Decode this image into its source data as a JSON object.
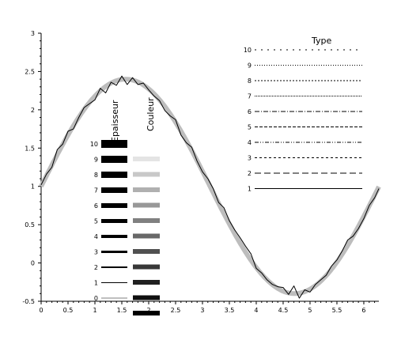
{
  "chart_data": {
    "type": "line",
    "xlim": [
      0,
      6.28
    ],
    "ylim": [
      -0.5,
      3
    ],
    "x_ticks": [
      "0",
      "0.5",
      "1",
      "1.5",
      "2",
      "2.5",
      "3",
      "3.5",
      "4",
      "4.5",
      "5",
      "5.5",
      "6"
    ],
    "y_ticks": [
      "-0.5",
      "0",
      "0.5",
      "1",
      "1.5",
      "2",
      "2.5",
      "3"
    ],
    "grid": false,
    "series": [
      {
        "kind": "smooth",
        "function": "1 + 1.4*sin(x)",
        "color": "#bdbdbd",
        "x": [
          0,
          0.5,
          1,
          1.5,
          2,
          2.5,
          3,
          3.5,
          4,
          4.5,
          5,
          5.5,
          6,
          6.28
        ],
        "y": [
          1.0,
          1.67,
          2.18,
          2.4,
          2.27,
          1.84,
          1.2,
          0.51,
          -0.06,
          -0.37,
          -0.34,
          0.02,
          0.61,
          1.0
        ]
      },
      {
        "kind": "noisy",
        "color": "#000000",
        "x": [
          0,
          0.1,
          0.2,
          0.3,
          0.4,
          0.5,
          0.6,
          0.7,
          0.8,
          0.9,
          1.0,
          1.1,
          1.2,
          1.3,
          1.4,
          1.5,
          1.6,
          1.7,
          1.8,
          1.9,
          2.0,
          2.1,
          2.2,
          2.3,
          2.4,
          2.5,
          2.6,
          2.7,
          2.8,
          2.9,
          3.0,
          3.1,
          3.2,
          3.3,
          3.4,
          3.5,
          3.6,
          3.7,
          3.8,
          3.9,
          4.0,
          4.1,
          4.2,
          4.3,
          4.4,
          4.5,
          4.6,
          4.7,
          4.8,
          4.9,
          5.0,
          5.1,
          5.2,
          5.3,
          5.4,
          5.5,
          5.6,
          5.7,
          5.8,
          5.9,
          6.0,
          6.1,
          6.2,
          6.28
        ],
        "y": [
          1.02,
          1.16,
          1.25,
          1.48,
          1.55,
          1.72,
          1.75,
          1.9,
          2.03,
          2.08,
          2.13,
          2.28,
          2.22,
          2.36,
          2.32,
          2.44,
          2.33,
          2.42,
          2.33,
          2.35,
          2.26,
          2.18,
          2.12,
          1.99,
          1.92,
          1.87,
          1.67,
          1.57,
          1.51,
          1.33,
          1.19,
          1.1,
          0.97,
          0.79,
          0.72,
          0.55,
          0.43,
          0.33,
          0.22,
          0.12,
          -0.07,
          -0.13,
          -0.22,
          -0.28,
          -0.31,
          -0.32,
          -0.41,
          -0.3,
          -0.46,
          -0.35,
          -0.38,
          -0.28,
          -0.22,
          -0.16,
          -0.04,
          0.04,
          0.16,
          0.3,
          0.35,
          0.45,
          0.58,
          0.75,
          0.85,
          0.97
        ]
      }
    ],
    "legends": {
      "epaisseur": {
        "heading": "Epaisseur",
        "labels": [
          "10",
          "9",
          "8",
          "7",
          "6",
          "5",
          "4",
          "3",
          "2",
          "1",
          "0"
        ],
        "widths": [
          10,
          9,
          8,
          7,
          6,
          5,
          4,
          3,
          2,
          1,
          0
        ]
      },
      "couleur": {
        "heading": "Couleur",
        "colors": [
          "#e4e4e4",
          "#c8c8c8",
          "#b0b0b0",
          "#989898",
          "#808080",
          "#686868",
          "#505050",
          "#383838",
          "#202020",
          "#101010",
          "#000000"
        ]
      },
      "type": {
        "heading": "Type",
        "labels": [
          "10",
          "9",
          "8",
          "7",
          "6",
          "5",
          "4",
          "3",
          "2",
          "1"
        ],
        "dash_styles": [
          "2,6",
          "1,2",
          "2,2",
          "1,1",
          "6,2,1,2",
          "4,2",
          "5,2,1,2,1,2",
          "3,3",
          "8,4",
          "solid"
        ]
      }
    }
  }
}
